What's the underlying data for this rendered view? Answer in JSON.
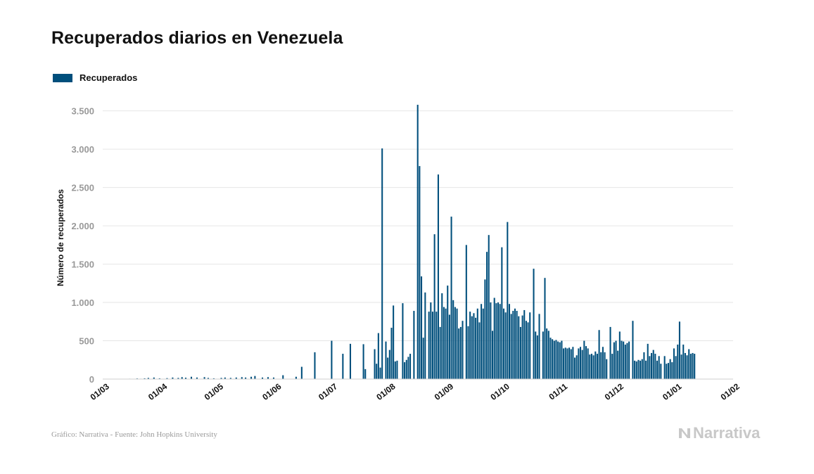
{
  "title": "Recuperados diarios en Venezuela",
  "legend_label": "Recuperados",
  "footer_source": "Gráfico: Narrativa - Fuente: John Hopkins University",
  "brand_name": "Narrativa",
  "colors": {
    "bar": "#004f7c",
    "grid": "#e6e6e6",
    "tick": "#999999",
    "brand": "#c8c8c8"
  },
  "chart_data": {
    "type": "bar",
    "title": "Recuperados diarios en Venezuela",
    "xlabel": "",
    "ylabel": "Número de recuperados",
    "ylim": [
      0,
      3800
    ],
    "yticks": [
      0,
      500,
      1000,
      1500,
      2000,
      2500,
      3000,
      3500
    ],
    "ytick_labels": [
      "0",
      "500",
      "1.000",
      "1.500",
      "2.000",
      "2.500",
      "3.000",
      "3.500"
    ],
    "x_start": "2020-03-01",
    "x_end": "2021-02-01",
    "xticks": [
      "2020-03-01",
      "2020-04-01",
      "2020-05-01",
      "2020-06-01",
      "2020-07-01",
      "2020-08-01",
      "2020-09-01",
      "2020-10-01",
      "2020-11-01",
      "2020-12-01",
      "2021-01-01",
      "2021-02-01"
    ],
    "xtick_labels": [
      "01/03",
      "01/04",
      "01/05",
      "01/06",
      "01/07",
      "01/08",
      "01/09",
      "01/10",
      "01/11",
      "01/12",
      "01/01",
      "01/02"
    ],
    "grid": true,
    "legend_position": "top-left",
    "series": [
      {
        "name": "Recuperados",
        "points": [
          [
            "2020-03-15",
            5
          ],
          [
            "2020-03-17",
            3
          ],
          [
            "2020-03-19",
            8
          ],
          [
            "2020-03-21",
            5
          ],
          [
            "2020-03-23",
            10
          ],
          [
            "2020-03-25",
            15
          ],
          [
            "2020-03-28",
            20
          ],
          [
            "2020-03-31",
            10
          ],
          [
            "2020-04-04",
            12
          ],
          [
            "2020-04-07",
            20
          ],
          [
            "2020-04-10",
            15
          ],
          [
            "2020-04-12",
            25
          ],
          [
            "2020-04-14",
            18
          ],
          [
            "2020-04-17",
            30
          ],
          [
            "2020-04-20",
            20
          ],
          [
            "2020-04-24",
            25
          ],
          [
            "2020-04-26",
            15
          ],
          [
            "2020-04-29",
            10
          ],
          [
            "2020-05-03",
            15
          ],
          [
            "2020-05-05",
            20
          ],
          [
            "2020-05-08",
            15
          ],
          [
            "2020-05-11",
            20
          ],
          [
            "2020-05-14",
            25
          ],
          [
            "2020-05-16",
            20
          ],
          [
            "2020-05-19",
            30
          ],
          [
            "2020-05-21",
            40
          ],
          [
            "2020-05-25",
            20
          ],
          [
            "2020-05-28",
            25
          ],
          [
            "2020-05-31",
            20
          ],
          [
            "2020-06-05",
            50
          ],
          [
            "2020-06-08",
            0
          ],
          [
            "2020-06-12",
            30
          ],
          [
            "2020-06-15",
            160
          ],
          [
            "2020-06-22",
            350
          ],
          [
            "2020-07-01",
            500
          ],
          [
            "2020-07-07",
            330
          ],
          [
            "2020-07-11",
            460
          ],
          [
            "2020-07-18",
            455
          ],
          [
            "2020-07-19",
            130
          ],
          [
            "2020-07-24",
            390
          ],
          [
            "2020-07-25",
            200
          ],
          [
            "2020-07-26",
            600
          ],
          [
            "2020-07-27",
            150
          ],
          [
            "2020-07-28",
            3010
          ],
          [
            "2020-07-30",
            490
          ],
          [
            "2020-07-31",
            280
          ],
          [
            "2020-08-01",
            380
          ],
          [
            "2020-08-02",
            670
          ],
          [
            "2020-08-03",
            960
          ],
          [
            "2020-08-04",
            230
          ],
          [
            "2020-08-05",
            240
          ],
          [
            "2020-08-08",
            990
          ],
          [
            "2020-08-09",
            220
          ],
          [
            "2020-08-10",
            250
          ],
          [
            "2020-08-11",
            290
          ],
          [
            "2020-08-12",
            330
          ],
          [
            "2020-08-14",
            890
          ],
          [
            "2020-08-16",
            3580
          ],
          [
            "2020-08-17",
            2780
          ],
          [
            "2020-08-18",
            1340
          ],
          [
            "2020-08-19",
            540
          ],
          [
            "2020-08-20",
            1130
          ],
          [
            "2020-08-22",
            880
          ],
          [
            "2020-08-23",
            1000
          ],
          [
            "2020-08-24",
            880
          ],
          [
            "2020-08-25",
            1890
          ],
          [
            "2020-08-26",
            880
          ],
          [
            "2020-08-27",
            2670
          ],
          [
            "2020-08-28",
            680
          ],
          [
            "2020-08-29",
            1120
          ],
          [
            "2020-08-30",
            940
          ],
          [
            "2020-08-31",
            920
          ],
          [
            "2020-09-01",
            1220
          ],
          [
            "2020-09-02",
            840
          ],
          [
            "2020-09-03",
            2120
          ],
          [
            "2020-09-04",
            1030
          ],
          [
            "2020-09-05",
            940
          ],
          [
            "2020-09-06",
            920
          ],
          [
            "2020-09-07",
            660
          ],
          [
            "2020-09-08",
            680
          ],
          [
            "2020-09-09",
            760
          ],
          [
            "2020-09-11",
            1750
          ],
          [
            "2020-09-12",
            690
          ],
          [
            "2020-09-13",
            880
          ],
          [
            "2020-09-14",
            820
          ],
          [
            "2020-09-15",
            860
          ],
          [
            "2020-09-16",
            800
          ],
          [
            "2020-09-17",
            920
          ],
          [
            "2020-09-18",
            740
          ],
          [
            "2020-09-19",
            980
          ],
          [
            "2020-09-20",
            920
          ],
          [
            "2020-09-21",
            1300
          ],
          [
            "2020-09-22",
            1660
          ],
          [
            "2020-09-23",
            1880
          ],
          [
            "2020-09-24",
            1000
          ],
          [
            "2020-09-25",
            630
          ],
          [
            "2020-09-26",
            1060
          ],
          [
            "2020-09-27",
            990
          ],
          [
            "2020-09-28",
            1000
          ],
          [
            "2020-09-29",
            980
          ],
          [
            "2020-09-30",
            1720
          ],
          [
            "2020-10-01",
            920
          ],
          [
            "2020-10-02",
            870
          ],
          [
            "2020-10-03",
            2050
          ],
          [
            "2020-10-04",
            980
          ],
          [
            "2020-10-05",
            850
          ],
          [
            "2020-10-06",
            890
          ],
          [
            "2020-10-07",
            920
          ],
          [
            "2020-10-08",
            890
          ],
          [
            "2020-10-09",
            820
          ],
          [
            "2020-10-10",
            680
          ],
          [
            "2020-10-11",
            830
          ],
          [
            "2020-10-12",
            900
          ],
          [
            "2020-10-13",
            760
          ],
          [
            "2020-10-14",
            740
          ],
          [
            "2020-10-15",
            870
          ],
          [
            "2020-10-17",
            1440
          ],
          [
            "2020-10-18",
            620
          ],
          [
            "2020-10-19",
            570
          ],
          [
            "2020-10-20",
            850
          ],
          [
            "2020-10-22",
            620
          ],
          [
            "2020-10-23",
            1320
          ],
          [
            "2020-10-24",
            660
          ],
          [
            "2020-10-25",
            630
          ],
          [
            "2020-10-26",
            540
          ],
          [
            "2020-10-27",
            520
          ],
          [
            "2020-10-28",
            500
          ],
          [
            "2020-10-29",
            510
          ],
          [
            "2020-10-30",
            490
          ],
          [
            "2020-10-31",
            480
          ],
          [
            "2020-11-01",
            500
          ],
          [
            "2020-11-02",
            400
          ],
          [
            "2020-11-03",
            410
          ],
          [
            "2020-11-04",
            400
          ],
          [
            "2020-11-05",
            410
          ],
          [
            "2020-11-06",
            390
          ],
          [
            "2020-11-07",
            420
          ],
          [
            "2020-11-08",
            280
          ],
          [
            "2020-11-09",
            310
          ],
          [
            "2020-11-10",
            400
          ],
          [
            "2020-11-11",
            420
          ],
          [
            "2020-11-12",
            380
          ],
          [
            "2020-11-13",
            500
          ],
          [
            "2020-11-14",
            430
          ],
          [
            "2020-11-15",
            400
          ],
          [
            "2020-11-16",
            320
          ],
          [
            "2020-11-17",
            330
          ],
          [
            "2020-11-18",
            310
          ],
          [
            "2020-11-19",
            360
          ],
          [
            "2020-11-20",
            330
          ],
          [
            "2020-11-21",
            640
          ],
          [
            "2020-11-22",
            350
          ],
          [
            "2020-11-23",
            420
          ],
          [
            "2020-11-24",
            350
          ],
          [
            "2020-11-25",
            260
          ],
          [
            "2020-11-27",
            680
          ],
          [
            "2020-11-28",
            330
          ],
          [
            "2020-11-29",
            480
          ],
          [
            "2020-11-30",
            500
          ],
          [
            "2020-12-01",
            370
          ],
          [
            "2020-12-02",
            620
          ],
          [
            "2020-12-03",
            500
          ],
          [
            "2020-12-04",
            490
          ],
          [
            "2020-12-05",
            450
          ],
          [
            "2020-12-06",
            470
          ],
          [
            "2020-12-07",
            490
          ],
          [
            "2020-12-09",
            760
          ],
          [
            "2020-12-10",
            240
          ],
          [
            "2020-12-11",
            230
          ],
          [
            "2020-12-12",
            250
          ],
          [
            "2020-12-13",
            240
          ],
          [
            "2020-12-14",
            260
          ],
          [
            "2020-12-15",
            350
          ],
          [
            "2020-12-16",
            240
          ],
          [
            "2020-12-17",
            460
          ],
          [
            "2020-12-18",
            300
          ],
          [
            "2020-12-19",
            340
          ],
          [
            "2020-12-20",
            380
          ],
          [
            "2020-12-21",
            330
          ],
          [
            "2020-12-22",
            240
          ],
          [
            "2020-12-23",
            300
          ],
          [
            "2020-12-24",
            200
          ],
          [
            "2020-12-26",
            300
          ],
          [
            "2020-12-27",
            200
          ],
          [
            "2020-12-28",
            210
          ],
          [
            "2020-12-29",
            260
          ],
          [
            "2020-12-30",
            220
          ],
          [
            "2020-12-31",
            400
          ],
          [
            "2021-01-01",
            300
          ],
          [
            "2021-01-02",
            450
          ],
          [
            "2021-01-03",
            750
          ],
          [
            "2021-01-04",
            320
          ],
          [
            "2021-01-05",
            450
          ],
          [
            "2021-01-06",
            340
          ],
          [
            "2021-01-07",
            310
          ],
          [
            "2021-01-08",
            390
          ],
          [
            "2021-01-09",
            330
          ],
          [
            "2021-01-10",
            340
          ],
          [
            "2021-01-11",
            330
          ]
        ]
      }
    ]
  }
}
